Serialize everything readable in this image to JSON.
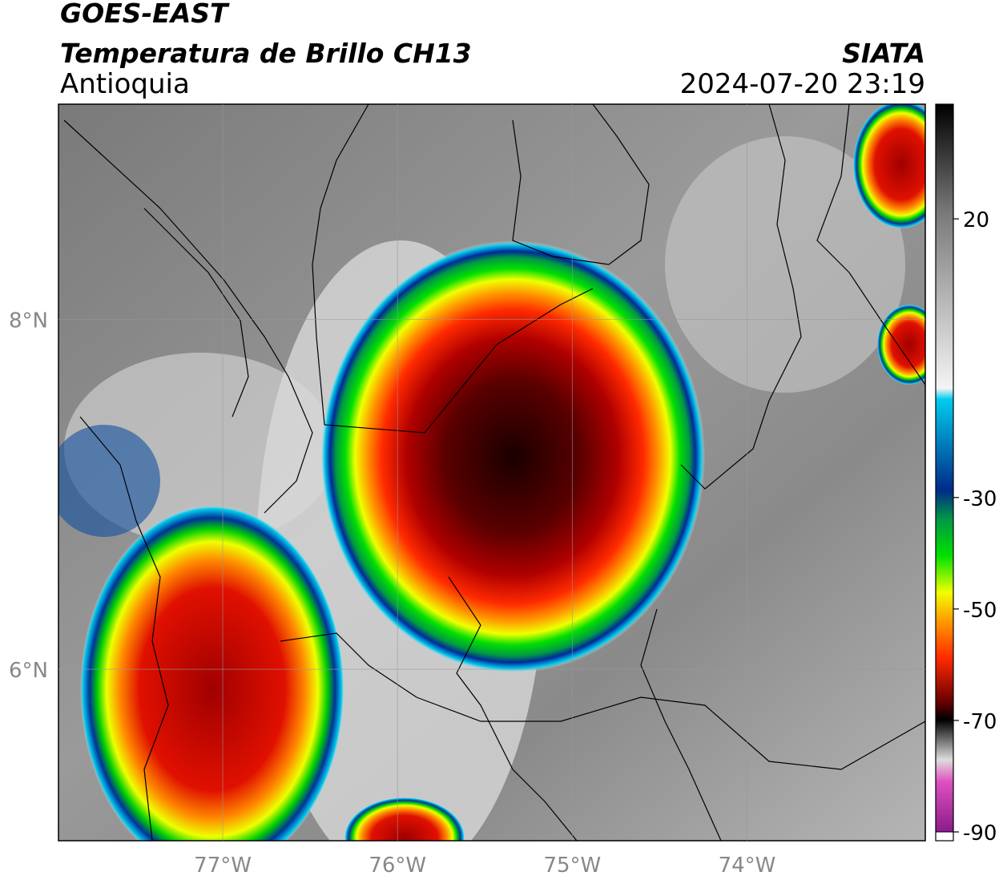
{
  "header": {
    "satellite": "GOES-EAST",
    "title": "Temperatura de Brillo CH13",
    "region": "Antioquia",
    "source": "SIATA",
    "datetime": "2024-07-20 23:19"
  },
  "map": {
    "xlim": [
      -77.94,
      -72.98
    ],
    "ylim": [
      5.02,
      9.23
    ],
    "xticks": [
      {
        "value": -77,
        "label": "77°W"
      },
      {
        "value": -76,
        "label": "76°W"
      },
      {
        "value": -75,
        "label": "75°W"
      },
      {
        "value": -74,
        "label": "74°W"
      }
    ],
    "yticks": [
      {
        "value": 8,
        "label": "8°N"
      },
      {
        "value": 6,
        "label": "6°N"
      }
    ]
  },
  "colorbar": {
    "lim": [
      -90,
      40
    ],
    "ticks": [
      20,
      -30,
      -50,
      -70,
      -90
    ]
  }
}
